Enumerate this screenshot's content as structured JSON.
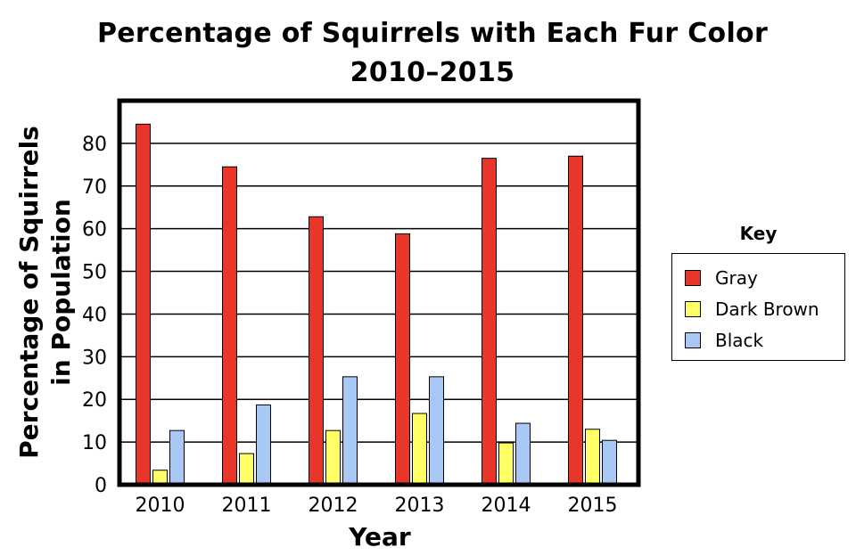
{
  "chart_data": {
    "type": "bar",
    "title": "Percentage of Squirrels with Each Fur Color",
    "subtitle": "2010–2015",
    "xlabel": "Year",
    "ylabel_line1": "Percentage of Squirrels",
    "ylabel_line2": "in Population",
    "categories": [
      "2010",
      "2011",
      "2012",
      "2013",
      "2014",
      "2015"
    ],
    "ylim": [
      0,
      90
    ],
    "yticks": [
      "0",
      "10",
      "20",
      "30",
      "40",
      "50",
      "60",
      "70",
      "80"
    ],
    "grid": true,
    "legend_title": "Key",
    "legend_position": "right",
    "series": [
      {
        "name": "Gray",
        "color": "#e8372a",
        "values": [
          84.5,
          74.5,
          62.8,
          58.8,
          76.5,
          77.0
        ]
      },
      {
        "name": "Dark Brown",
        "color": "#ffff66",
        "values": [
          3.4,
          7.3,
          12.7,
          16.7,
          9.8,
          13.0
        ]
      },
      {
        "name": "Black",
        "color": "#a8c8f5",
        "values": [
          12.7,
          18.7,
          25.3,
          25.3,
          14.4,
          10.4
        ]
      }
    ]
  }
}
